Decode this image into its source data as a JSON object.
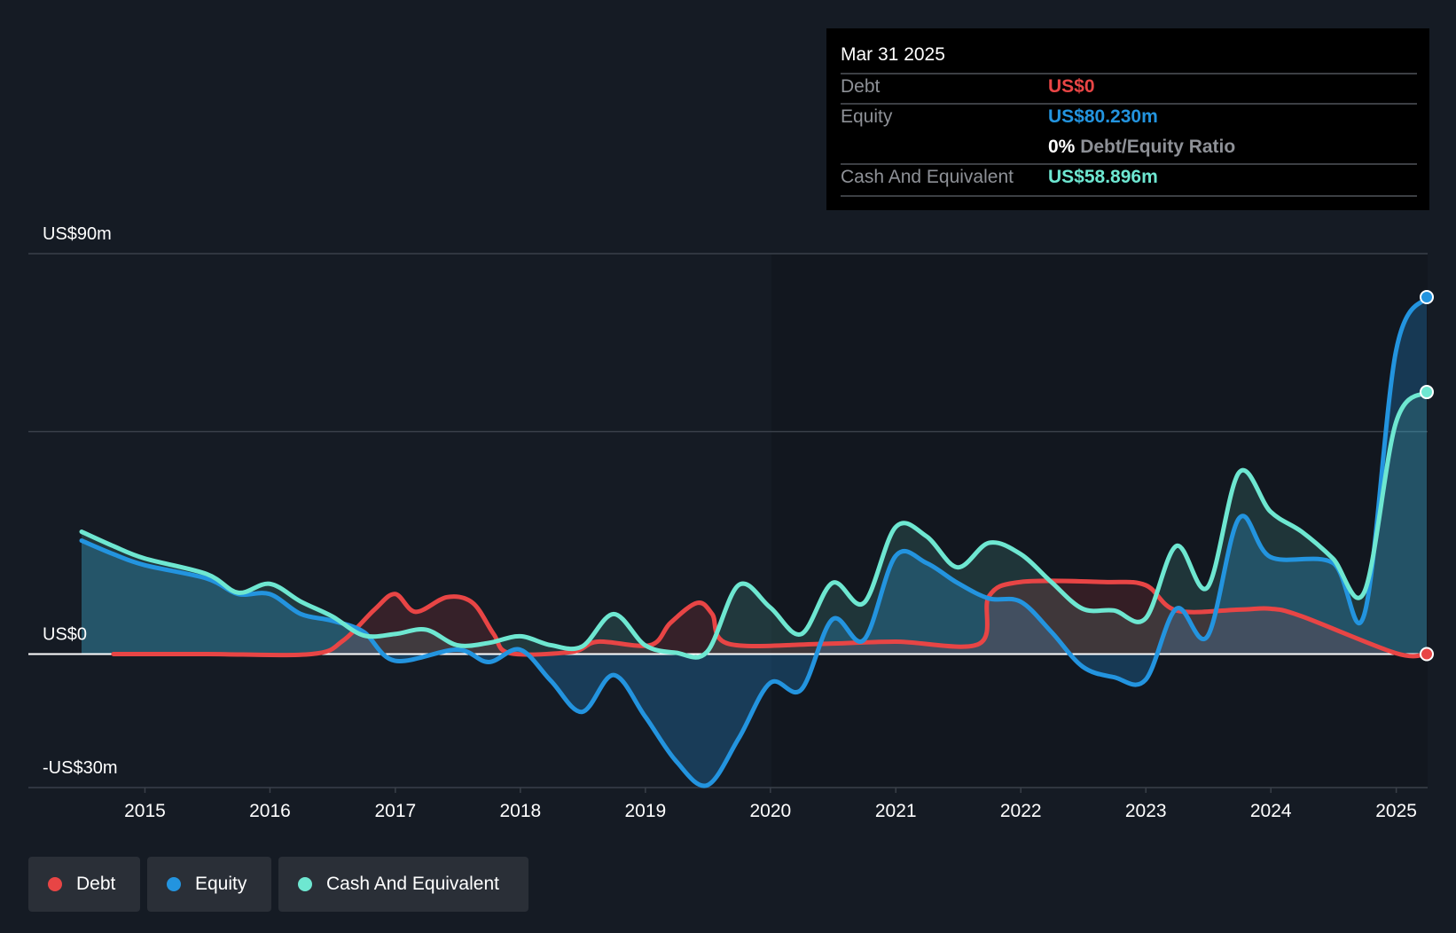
{
  "chart_data": {
    "type": "area",
    "x_range": [
      "2014-01-01",
      "2025-03-31"
    ],
    "ylim": [
      -30,
      90
    ],
    "y_ticks": [
      {
        "value": 90,
        "label": "US$90m"
      },
      {
        "value": 0,
        "label": "US$0"
      },
      {
        "value": -30,
        "label": "-US$30m"
      }
    ],
    "gridlines": [
      90,
      50
    ],
    "x_ticks": [
      "2015",
      "2016",
      "2017",
      "2018",
      "2019",
      "2020",
      "2021",
      "2022",
      "2023",
      "2024",
      "2025"
    ],
    "series": [
      {
        "name": "Debt",
        "color": "#e84545",
        "points": [
          [
            "2014-10-01",
            0
          ],
          [
            "2015-07-01",
            0
          ],
          [
            "2016-05-01",
            0
          ],
          [
            "2016-08-01",
            3
          ],
          [
            "2016-11-01",
            10
          ],
          [
            "2016-12-31",
            13.5
          ],
          [
            "2017-03-01",
            9.5
          ],
          [
            "2017-06-01",
            12.8
          ],
          [
            "2017-08-15",
            11.5
          ],
          [
            "2017-10-15",
            4.5
          ],
          [
            "2017-12-01",
            0.2
          ],
          [
            "2018-06-01",
            0.5
          ],
          [
            "2018-08-15",
            2.8
          ],
          [
            "2019-01-15",
            2
          ],
          [
            "2019-03-15",
            7
          ],
          [
            "2019-06-01",
            11.5
          ],
          [
            "2019-07-15",
            9
          ],
          [
            "2019-09-01",
            2.3
          ],
          [
            "2020-06-01",
            2.3
          ],
          [
            "2020-12-31",
            2.8
          ],
          [
            "2021-09-01",
            2.3
          ],
          [
            "2021-09-30",
            13
          ],
          [
            "2021-12-31",
            16.2
          ],
          [
            "2022-09-01",
            16.2
          ],
          [
            "2022-12-31",
            15.5
          ],
          [
            "2023-03-31",
            9.8
          ],
          [
            "2023-09-30",
            10
          ],
          [
            "2023-12-31",
            10.2
          ],
          [
            "2024-03-31",
            8.5
          ],
          [
            "2024-12-31",
            0.2
          ],
          [
            "2025-03-31",
            0
          ]
        ]
      },
      {
        "name": "Equity",
        "color": "#2394df",
        "points": [
          [
            "2014-06-30",
            25.5
          ],
          [
            "2014-09-30",
            22.5
          ],
          [
            "2014-12-31",
            20
          ],
          [
            "2015-06-30",
            17
          ],
          [
            "2015-09-30",
            13.5
          ],
          [
            "2015-12-31",
            13.5
          ],
          [
            "2016-03-31",
            9
          ],
          [
            "2016-06-30",
            7.5
          ],
          [
            "2016-09-30",
            5
          ],
          [
            "2016-12-31",
            -1.5
          ],
          [
            "2017-06-30",
            1
          ],
          [
            "2017-09-30",
            -1.8
          ],
          [
            "2017-12-31",
            1
          ],
          [
            "2018-03-31",
            -6
          ],
          [
            "2018-06-30",
            -13
          ],
          [
            "2018-09-30",
            -4.7
          ],
          [
            "2018-12-31",
            -14
          ],
          [
            "2019-03-31",
            -24
          ],
          [
            "2019-06-30",
            -29.5
          ],
          [
            "2019-09-30",
            -19
          ],
          [
            "2019-12-31",
            -6.5
          ],
          [
            "2020-03-31",
            -8
          ],
          [
            "2020-06-30",
            7.8
          ],
          [
            "2020-09-30",
            3.2
          ],
          [
            "2020-12-31",
            22
          ],
          [
            "2021-03-31",
            20.5
          ],
          [
            "2021-06-30",
            16
          ],
          [
            "2021-09-30",
            12.5
          ],
          [
            "2021-12-31",
            11.8
          ],
          [
            "2022-03-31",
            5
          ],
          [
            "2022-06-30",
            -2.8
          ],
          [
            "2022-09-30",
            -5.2
          ],
          [
            "2022-12-31",
            -5.8
          ],
          [
            "2023-03-31",
            10.2
          ],
          [
            "2023-06-30",
            4
          ],
          [
            "2023-09-30",
            30.5
          ],
          [
            "2023-12-31",
            21.8
          ],
          [
            "2024-06-30",
            20.5
          ],
          [
            "2024-09-30",
            9
          ],
          [
            "2024-12-31",
            68
          ],
          [
            "2025-03-31",
            80.23
          ]
        ]
      },
      {
        "name": "Cash And Equivalent",
        "color": "#6ee7d1",
        "points": [
          [
            "2014-06-30",
            27.5
          ],
          [
            "2014-09-30",
            24.3
          ],
          [
            "2014-12-31",
            21.5
          ],
          [
            "2015-06-30",
            18
          ],
          [
            "2015-09-30",
            13.8
          ],
          [
            "2015-12-31",
            15.8
          ],
          [
            "2016-03-31",
            11.8
          ],
          [
            "2016-06-30",
            8.5
          ],
          [
            "2016-09-30",
            4.2
          ],
          [
            "2016-12-31",
            4.5
          ],
          [
            "2017-03-31",
            5.5
          ],
          [
            "2017-06-30",
            2
          ],
          [
            "2017-09-30",
            2.5
          ],
          [
            "2017-12-31",
            4
          ],
          [
            "2018-03-31",
            2
          ],
          [
            "2018-06-30",
            1.7
          ],
          [
            "2018-09-30",
            9
          ],
          [
            "2018-12-31",
            2
          ],
          [
            "2019-03-31",
            0.3
          ],
          [
            "2019-06-30",
            0.5
          ],
          [
            "2019-09-30",
            15.5
          ],
          [
            "2019-12-31",
            10.5
          ],
          [
            "2020-03-31",
            4.5
          ],
          [
            "2020-06-30",
            16
          ],
          [
            "2020-09-30",
            11.5
          ],
          [
            "2020-12-31",
            28.5
          ],
          [
            "2021-03-31",
            26.5
          ],
          [
            "2021-06-30",
            19.5
          ],
          [
            "2021-09-30",
            25
          ],
          [
            "2021-12-31",
            22.5
          ],
          [
            "2022-03-31",
            16.2
          ],
          [
            "2022-06-30",
            10.2
          ],
          [
            "2022-09-30",
            9.8
          ],
          [
            "2022-12-31",
            8
          ],
          [
            "2023-03-31",
            24.3
          ],
          [
            "2023-06-30",
            15
          ],
          [
            "2023-09-30",
            40.8
          ],
          [
            "2023-12-31",
            32
          ],
          [
            "2024-03-31",
            27.5
          ],
          [
            "2024-06-30",
            21.5
          ],
          [
            "2024-09-30",
            14
          ],
          [
            "2024-12-31",
            52
          ],
          [
            "2025-03-31",
            58.896
          ]
        ]
      }
    ],
    "legend_placement": "bottom-left"
  },
  "tooltip": {
    "date": "Mar 31 2025",
    "rows": [
      {
        "label": "Debt",
        "value": "US$0",
        "color": "#e84545"
      },
      {
        "label": "Equity",
        "value": "US$80.230m",
        "color": "#2394df"
      },
      {
        "label": "",
        "value": "0%",
        "extra": "Debt/Equity Ratio",
        "color": "#ffffff"
      },
      {
        "label": "Cash And Equivalent",
        "value": "US$58.896m",
        "color": "#6ee7d1"
      }
    ]
  },
  "legend": [
    {
      "label": "Debt",
      "color": "#e84545"
    },
    {
      "label": "Equity",
      "color": "#2394df"
    },
    {
      "label": "Cash And Equivalent",
      "color": "#6ee7d1"
    }
  ]
}
